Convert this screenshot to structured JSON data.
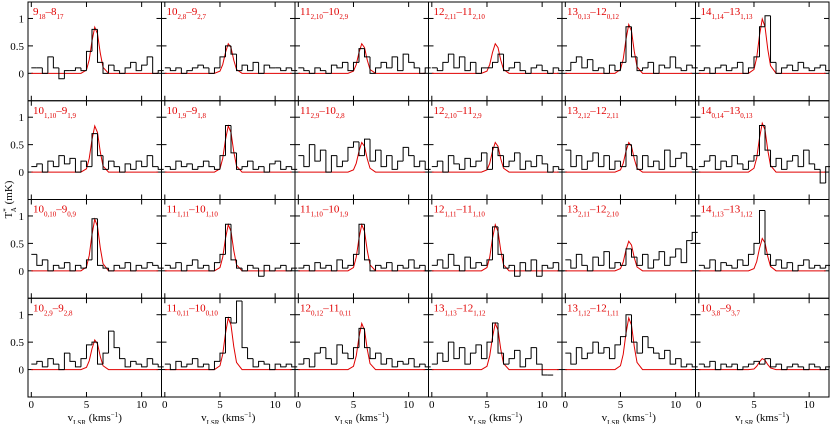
{
  "chart_data": {
    "type": "step",
    "xlim": [
      -0.3,
      11.8
    ],
    "ylim": [
      -0.5,
      1.3
    ],
    "xticks": [
      0,
      5,
      10
    ],
    "yticks": [
      0,
      0.5,
      1
    ],
    "xlabel": {
      "main": "v",
      "sub": "LSR",
      "rest": " (kms",
      "sup": "−1",
      "end": ")"
    },
    "ylabel": {
      "main": "T",
      "sup": "*",
      "sub": "A",
      "rest": " (mK)"
    },
    "data_color": "#000000",
    "model_color": "#e00000",
    "title_color": "#e00000",
    "x": [
      0.25,
      0.75,
      1.25,
      1.75,
      2.25,
      2.75,
      3.25,
      3.75,
      4.25,
      4.75,
      5.25,
      5.75,
      6.25,
      6.75,
      7.25,
      7.75,
      8.25,
      8.75,
      9.25,
      9.75,
      10.25,
      10.75,
      11.25,
      11.75
    ],
    "model_x": [
      0,
      4.5,
      5.0,
      5.25,
      5.5,
      5.75,
      6.0,
      6.25,
      6.5,
      7.0,
      11.5
    ],
    "panels": [
      {
        "title": [
          {
            "text": "9",
            "sub": "18"
          },
          {
            "text": "–8",
            "sub": "17"
          }
        ],
        "values": [
          0.1,
          0.1,
          0,
          0.3,
          0.1,
          -0.1,
          0.05,
          0.05,
          0.1,
          0.05,
          0.4,
          0.8,
          0.2,
          0,
          0.15,
          0.05,
          0,
          0.1,
          0.2,
          0.05,
          0.15,
          0.3,
          0,
          0.05
        ],
        "model": [
          0,
          0,
          0.06,
          0.25,
          0.59,
          0.84,
          0.72,
          0.37,
          0.11,
          0,
          0
        ]
      },
      {
        "title": [
          {
            "text": "10",
            "sub": "2,8"
          },
          {
            "text": "–9",
            "sub": "2,7"
          }
        ],
        "values": [
          0.1,
          0.05,
          0.1,
          0,
          0.05,
          0.1,
          0.15,
          0.1,
          0,
          0.1,
          0.3,
          0.5,
          0.35,
          0.05,
          0.15,
          0.05,
          0.2,
          0,
          0.15,
          0.1,
          0.1,
          0.05,
          0.1,
          0.05
        ],
        "model": [
          0,
          0,
          0.04,
          0.16,
          0.38,
          0.54,
          0.47,
          0.24,
          0.07,
          0,
          0
        ]
      },
      {
        "title": [
          {
            "text": "11",
            "sub": "2,10"
          },
          {
            "text": "–10",
            "sub": "2,9"
          }
        ],
        "values": [
          0.1,
          0.05,
          0,
          0.1,
          0.05,
          0,
          0.15,
          0.1,
          0.2,
          0.05,
          0.2,
          0.45,
          0.3,
          0,
          0.1,
          0.2,
          0.1,
          0.3,
          0.05,
          0.35,
          0.2,
          0.1,
          0,
          0.1
        ],
        "model": [
          0,
          0,
          0.04,
          0.16,
          0.38,
          0.54,
          0.47,
          0.24,
          0.07,
          0,
          0
        ]
      },
      {
        "title": [
          {
            "text": "12",
            "sub": "2,11"
          },
          {
            "text": "–11",
            "sub": "2,10"
          }
        ],
        "values": [
          0.1,
          0.05,
          0.2,
          0.35,
          0.1,
          0.3,
          0.05,
          0.2,
          0,
          0.1,
          0.1,
          0.2,
          0.35,
          0.05,
          0.1,
          0.2,
          0.05,
          0,
          0.1,
          0.15,
          0.05,
          0,
          0.1,
          0.05
        ],
        "model": [
          0,
          0,
          0.04,
          0.16,
          0.38,
          0.54,
          0.47,
          0.24,
          0.07,
          0,
          0
        ]
      },
      {
        "title": [
          {
            "text": "13",
            "sub": "0,13"
          },
          {
            "text": "–12",
            "sub": "0,12"
          }
        ],
        "values": [
          0.05,
          0.2,
          0.3,
          0.1,
          0.25,
          0.05,
          0.1,
          0,
          0.15,
          0.05,
          0.2,
          0.85,
          0.3,
          0.05,
          0.1,
          0.2,
          0,
          0.15,
          0.1,
          0.3,
          0.1,
          0.05,
          0.15,
          0.1
        ],
        "model": [
          0,
          0,
          0.07,
          0.26,
          0.62,
          0.89,
          0.77,
          0.4,
          0.12,
          0,
          0
        ]
      },
      {
        "title": [
          {
            "text": "14",
            "sub": "1,14"
          },
          {
            "text": "–13",
            "sub": "1,13"
          }
        ],
        "values": [
          0.05,
          0.1,
          0,
          0.1,
          0.15,
          0.05,
          0.1,
          0.2,
          0,
          0.1,
          0.3,
          0.85,
          1.05,
          0.2,
          0,
          0.1,
          0.15,
          0.05,
          0.2,
          0.1,
          0.05,
          0.1,
          0.15,
          0.05
        ],
        "model": [
          0,
          0,
          0.07,
          0.29,
          0.69,
          0.99,
          0.85,
          0.44,
          0.14,
          0,
          0
        ]
      },
      {
        "title": [
          {
            "text": "10",
            "sub": "1,10"
          },
          {
            "text": "–9",
            "sub": "1,9"
          }
        ],
        "values": [
          0.1,
          0.15,
          0,
          0.2,
          0.1,
          0.3,
          0.15,
          0.25,
          0,
          0.2,
          0.1,
          0.7,
          0.3,
          0.05,
          0.2,
          0.1,
          0,
          0.15,
          0.05,
          0.2,
          0.1,
          0.3,
          0.1,
          0.05
        ],
        "model": [
          0,
          0,
          0.06,
          0.25,
          0.59,
          0.84,
          0.72,
          0.37,
          0.11,
          0,
          0
        ]
      },
      {
        "title": [
          {
            "text": "10",
            "sub": "1,9"
          },
          {
            "text": "–9",
            "sub": "1,8"
          }
        ],
        "values": [
          0.1,
          0.05,
          0.2,
          0.1,
          0.15,
          0.05,
          0.1,
          0.2,
          0.1,
          0.05,
          0.3,
          0.85,
          0.35,
          0.05,
          0.1,
          0.2,
          0.05,
          0.1,
          0,
          0.15,
          0.2,
          0.05,
          0.1,
          0.05
        ],
        "model": [
          0,
          0,
          0.06,
          0.25,
          0.59,
          0.84,
          0.72,
          0.37,
          0.11,
          0,
          0
        ]
      },
      {
        "title": [
          {
            "text": "11",
            "sub": "2,9"
          },
          {
            "text": "–10",
            "sub": "2,8"
          }
        ],
        "values": [
          0.3,
          0.1,
          0.5,
          0.2,
          0.4,
          0,
          0.3,
          0.1,
          0.2,
          0.45,
          0.55,
          0.3,
          0.6,
          0.2,
          0.4,
          0.1,
          0.3,
          0.05,
          0.2,
          0.45,
          0.3,
          0.1,
          0.2,
          0.05
        ],
        "model": [
          0,
          0,
          0.04,
          0.16,
          0.38,
          0.54,
          0.47,
          0.24,
          0.07,
          0,
          0
        ]
      },
      {
        "title": [
          {
            "text": "12",
            "sub": "2,10"
          },
          {
            "text": "–11",
            "sub": "2,9"
          }
        ],
        "values": [
          0.1,
          0.2,
          0,
          0.3,
          0.15,
          0.05,
          0.25,
          0.1,
          0.2,
          0.35,
          0.05,
          0.45,
          0.3,
          0.1,
          0.2,
          0.35,
          0.05,
          0.2,
          0.1,
          0.3,
          0.15,
          0,
          0.1,
          0.05
        ],
        "model": [
          0,
          0,
          0.04,
          0.16,
          0.38,
          0.54,
          0.47,
          0.24,
          0.07,
          0,
          0
        ]
      },
      {
        "title": [
          {
            "text": "13",
            "sub": "2,12"
          },
          {
            "text": "–12",
            "sub": "2,11"
          }
        ],
        "values": [
          0.4,
          0.1,
          0.3,
          0.05,
          0.2,
          0.35,
          0.1,
          0.3,
          0.05,
          0.2,
          0.1,
          0.5,
          0.3,
          0.05,
          0.3,
          0.1,
          0.2,
          0.05,
          0.4,
          0.1,
          0.25,
          0.35,
          0.1,
          0.05
        ],
        "model": [
          0,
          0,
          0.04,
          0.16,
          0.38,
          0.54,
          0.47,
          0.24,
          0.07,
          0,
          0
        ]
      },
      {
        "title": [
          {
            "text": "14",
            "sub": "0,14"
          },
          {
            "text": "–13",
            "sub": "0,13"
          }
        ],
        "values": [
          0.1,
          0.2,
          0.3,
          0.05,
          0.2,
          0.1,
          0.3,
          0.15,
          0.05,
          0.2,
          0.3,
          0.85,
          0.4,
          0.1,
          0.25,
          0.05,
          0.2,
          0.3,
          0.1,
          0.4,
          0.15,
          0.05,
          -0.2,
          0.1
        ],
        "model": [
          0,
          0,
          0.07,
          0.26,
          0.62,
          0.89,
          0.77,
          0.4,
          0.12,
          0,
          0
        ]
      },
      {
        "title": [
          {
            "text": "10",
            "sub": "0,10"
          },
          {
            "text": "–9",
            "sub": "0,9"
          }
        ],
        "values": [
          0.3,
          0.1,
          0.2,
          0,
          0.1,
          0.05,
          0.15,
          0,
          0.1,
          0.05,
          0.2,
          0.95,
          0.1,
          0.05,
          0,
          0.1,
          0.05,
          0.15,
          0,
          0.1,
          0.05,
          0.15,
          0.1,
          0.05
        ],
        "model": [
          0,
          0,
          0.07,
          0.28,
          0.66,
          0.94,
          0.81,
          0.42,
          0.13,
          0,
          0
        ]
      },
      {
        "title": [
          {
            "text": "11",
            "sub": "1,11"
          },
          {
            "text": "–10",
            "sub": "1,10"
          }
        ],
        "values": [
          0.1,
          0.05,
          0.15,
          0,
          0.1,
          0.2,
          0.05,
          0.1,
          0,
          0.15,
          0.3,
          0.85,
          0.2,
          0.05,
          0,
          0.1,
          0.05,
          -0.1,
          0.1,
          0,
          0.05,
          0.1,
          0,
          0.05
        ],
        "model": [
          0,
          0,
          0.06,
          0.25,
          0.59,
          0.84,
          0.72,
          0.37,
          0.11,
          0,
          0
        ]
      },
      {
        "title": [
          {
            "text": "11",
            "sub": "1,10"
          },
          {
            "text": "–10",
            "sub": "1,9"
          }
        ],
        "values": [
          0.05,
          0.1,
          0,
          0.15,
          0.05,
          0.1,
          0,
          0.2,
          0.05,
          0.1,
          0.3,
          0.85,
          0.2,
          0,
          0.1,
          0.05,
          0.15,
          0,
          0.1,
          0.05,
          0.2,
          0.05,
          0.1,
          0
        ],
        "model": [
          0,
          0,
          0.06,
          0.25,
          0.59,
          0.84,
          0.72,
          0.37,
          0.11,
          0,
          0
        ]
      },
      {
        "title": [
          {
            "text": "12",
            "sub": "1,11"
          },
          {
            "text": "–11",
            "sub": "1,10"
          }
        ],
        "values": [
          0.1,
          0.2,
          0.05,
          0.3,
          0.1,
          0,
          0.25,
          0.05,
          0.15,
          0.1,
          0.2,
          0.8,
          0.3,
          0.05,
          0.1,
          -0.1,
          0.15,
          0,
          0.2,
          -0.1,
          0.1,
          0.05,
          0.15,
          0
        ],
        "model": [
          0,
          0,
          0.06,
          0.25,
          0.59,
          0.84,
          0.72,
          0.37,
          0.11,
          0,
          0
        ]
      },
      {
        "title": [
          {
            "text": "13",
            "sub": "2,11"
          },
          {
            "text": "–12",
            "sub": "2,10"
          }
        ],
        "values": [
          0.2,
          0.05,
          0.3,
          0.1,
          0,
          0.25,
          0.1,
          0.35,
          0.05,
          0.15,
          0.1,
          0.4,
          0.25,
          0.1,
          0.3,
          0.05,
          0.2,
          0.35,
          0.1,
          0.25,
          0.4,
          0.15,
          0.55,
          0.7
        ],
        "model": [
          0,
          0,
          0.04,
          0.16,
          0.38,
          0.54,
          0.47,
          0.24,
          0.07,
          0,
          0
        ]
      },
      {
        "title": [
          {
            "text": "14",
            "sub": "1,13"
          },
          {
            "text": "–13",
            "sub": "1,12"
          }
        ],
        "values": [
          0.1,
          0.05,
          0.2,
          0,
          0.15,
          0.1,
          0.05,
          0.2,
          0.1,
          0.3,
          0.5,
          1.1,
          0.3,
          0.1,
          0.2,
          0.05,
          0.15,
          0,
          0.1,
          0.2,
          0.05,
          0.1,
          0.05,
          0.1
        ],
        "model": [
          0,
          0,
          0.04,
          0.17,
          0.41,
          0.59,
          0.51,
          0.26,
          0.08,
          0,
          0
        ]
      },
      {
        "title": [
          {
            "text": "10",
            "sub": "2,9"
          },
          {
            "text": "–9",
            "sub": "2,8"
          }
        ],
        "values": [
          0.1,
          0.15,
          0.05,
          0.2,
          0.1,
          0,
          0.3,
          0.15,
          0.05,
          0.2,
          0.45,
          0.5,
          0.1,
          0.3,
          0.7,
          0.4,
          0.2,
          0.05,
          0.15,
          0.1,
          0.05,
          0.2,
          0.1,
          0.05
        ],
        "model": [
          0,
          0,
          0.04,
          0.16,
          0.38,
          0.54,
          0.47,
          0.24,
          0.07,
          0,
          0
        ]
      },
      {
        "title": [
          {
            "text": "11",
            "sub": "0,11"
          },
          {
            "text": "–10",
            "sub": "0,10"
          }
        ],
        "values": [
          0.1,
          0,
          0.15,
          0.05,
          0.1,
          0.2,
          0.05,
          0.1,
          0,
          0.15,
          0.3,
          0.95,
          0.85,
          1.25,
          0.4,
          0.2,
          0.05,
          0.15,
          0.1,
          0,
          0.1,
          0.05,
          0.1,
          0.05
        ],
        "model": [
          0,
          0,
          0.07,
          0.28,
          0.66,
          0.94,
          0.81,
          0.42,
          0.13,
          0,
          0
        ]
      },
      {
        "title": [
          {
            "text": "12",
            "sub": "0,12"
          },
          {
            "text": "–11",
            "sub": "0,11"
          }
        ],
        "values": [
          0.1,
          0.2,
          0.05,
          0.3,
          0.4,
          0.2,
          0.1,
          0.45,
          0.3,
          0.2,
          0.4,
          0.75,
          0.4,
          0.2,
          0.3,
          0.1,
          0.2,
          0.05,
          0.15,
          0.1,
          0.2,
          0.05,
          0.1,
          0.05
        ],
        "model": [
          0,
          0,
          0.06,
          0.25,
          0.59,
          0.84,
          0.72,
          0.37,
          0.11,
          0,
          0
        ]
      },
      {
        "title": [
          {
            "text": "13",
            "sub": "1,13"
          },
          {
            "text": "–12",
            "sub": "1,12"
          }
        ],
        "values": [
          0.1,
          0.3,
          0.15,
          0.5,
          0.2,
          0.4,
          0.1,
          0.3,
          0.45,
          0.2,
          0.5,
          0.85,
          0.3,
          0.1,
          0.2,
          0.35,
          0.05,
          0.2,
          0.4,
          0.1,
          -0.1,
          -0.1,
          null,
          null
        ],
        "model": [
          0,
          0,
          0.06,
          0.25,
          0.59,
          0.84,
          0.72,
          0.37,
          0.11,
          0,
          0
        ]
      },
      {
        "title": [
          {
            "text": "13",
            "sub": "1,12"
          },
          {
            "text": "–12",
            "sub": "1,11"
          }
        ],
        "values": [
          0.3,
          0.1,
          0.4,
          0.2,
          0.3,
          0.5,
          0.3,
          0.4,
          0.2,
          0.45,
          0.6,
          1.0,
          0.5,
          0.3,
          0.6,
          0.4,
          0.3,
          0.2,
          0.35,
          0.1,
          0.2,
          0.05,
          0.1,
          0.05
        ],
        "model": [
          0,
          0,
          0.07,
          0.28,
          0.66,
          0.94,
          0.81,
          0.42,
          0.13,
          0,
          0
        ]
      },
      {
        "title": [
          {
            "text": "10",
            "sub": "3,8"
          },
          {
            "text": "–9",
            "sub": "3,7"
          }
        ],
        "values": [
          0.1,
          0.05,
          0.15,
          0,
          0.1,
          0.05,
          0.1,
          0,
          0.05,
          0.1,
          0.15,
          0.1,
          0.2,
          0.05,
          0.1,
          0,
          0.05,
          0.1,
          0.05,
          0,
          0.1,
          0.05,
          0,
          0.05
        ],
        "model": [
          0,
          0,
          0.01,
          0.06,
          0.14,
          0.2,
          0.17,
          0.09,
          0.03,
          0,
          0
        ]
      }
    ]
  }
}
